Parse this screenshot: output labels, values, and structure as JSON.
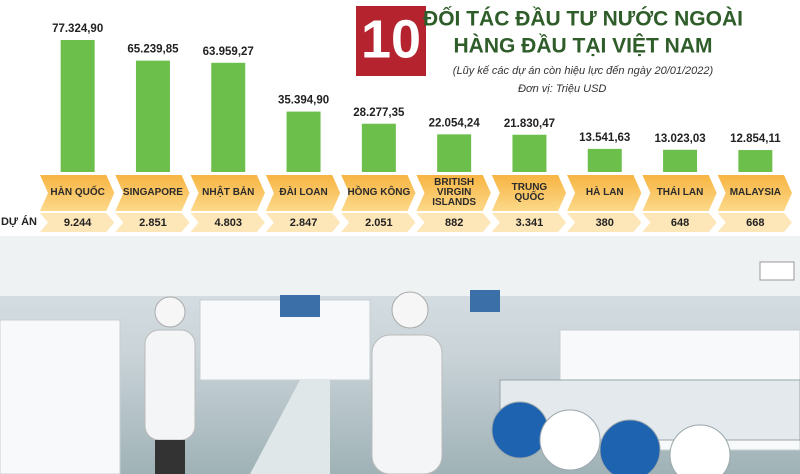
{
  "title_number": "10",
  "title_lines": [
    "ĐỐI TÁC ĐẦU TƯ NƯỚC NGOÀI",
    "HÀNG ĐẦU TẠI VIỆT NAM"
  ],
  "subtitle": "(Lũy kế các dự án còn hiệu lực đến ngày 20/01/2022)",
  "unit": "Đơn vị: Triệu USD",
  "chart_data": {
    "type": "bar",
    "color": "#6cbf4b",
    "categories": [
      "HÀN QUỐC",
      "SINGAPORE",
      "NHẬT BẢN",
      "ĐÀI LOAN",
      "HỒNG KÔNG",
      "BRITISH\nVIRGIN\nISLANDS",
      "TRUNG\nQUỐC",
      "HÀ LAN",
      "THÁI LAN",
      "MALAYSIA"
    ],
    "values": [
      77324.9,
      65239.85,
      63959.27,
      35394.9,
      28277.35,
      22054.24,
      21830.47,
      13541.63,
      13023.03,
      12854.11
    ],
    "value_labels": [
      "77.324,90",
      "65.239,85",
      "63.959,27",
      "35.394,90",
      "28.277,35",
      "22.054,24",
      "21.830,47",
      "13.541,63",
      "13.023,03",
      "12.854,11"
    ],
    "projects": {
      "label": "DỰ ÁN",
      "values": [
        9244,
        2851,
        4803,
        2847,
        2051,
        882,
        3341,
        380,
        648,
        668
      ],
      "value_labels": [
        "9.244",
        "2.851",
        "4.803",
        "2.847",
        "2.051",
        "882",
        "3.341",
        "380",
        "648",
        "668"
      ]
    }
  }
}
